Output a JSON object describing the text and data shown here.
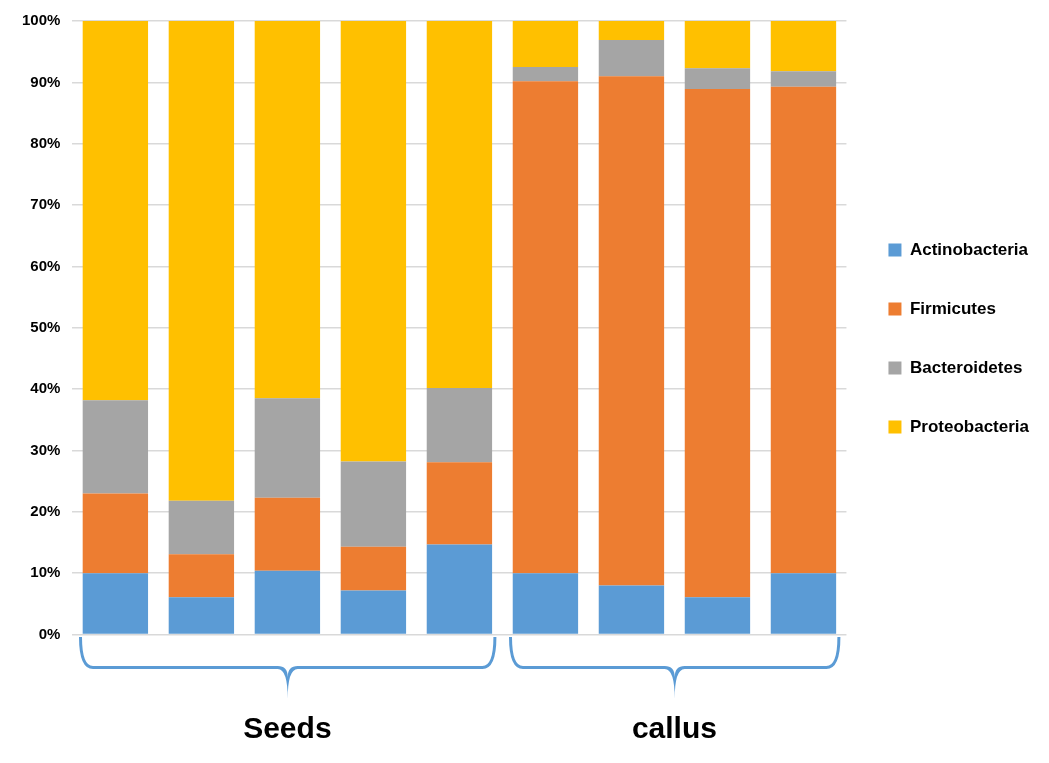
{
  "chart_data": {
    "type": "bar",
    "stacked": true,
    "categories": [
      null,
      null,
      null,
      null,
      null,
      null,
      null,
      null,
      null
    ],
    "series": [
      {
        "name": "Actinobacteria",
        "color": "#5b9bd5",
        "values": [
          10,
          6.1,
          10.4,
          7.2,
          14.7,
          10,
          8,
          6.1,
          10
        ]
      },
      {
        "name": "Firmicutes",
        "color": "#ed7d31",
        "values": [
          13,
          7,
          11.9,
          7.1,
          13.4,
          80.2,
          83,
          82.8,
          79.3
        ]
      },
      {
        "name": "Bacteroidetes",
        "color": "#a5a5a5",
        "values": [
          15.2,
          8.7,
          16.2,
          13.9,
          12.1,
          2.3,
          5.9,
          3.4,
          2.5
        ]
      },
      {
        "name": "Proteobacteria",
        "color": "#ffc000",
        "values": [
          61.8,
          78.2,
          61.5,
          71.8,
          59.8,
          7.5,
          3.1,
          7.7,
          8.2
        ]
      }
    ],
    "ylim": [
      0,
      100
    ],
    "yticks": [
      {
        "value": 0,
        "label": "0%"
      },
      {
        "value": 10,
        "label": "10%"
      },
      {
        "value": 20,
        "label": "20%"
      },
      {
        "value": 30,
        "label": "30%"
      },
      {
        "value": 40,
        "label": "40%"
      },
      {
        "value": 50,
        "label": "50%"
      },
      {
        "value": 60,
        "label": "60%"
      },
      {
        "value": 70,
        "label": "70%"
      },
      {
        "value": 80,
        "label": "80%"
      },
      {
        "value": 90,
        "label": "90%"
      },
      {
        "value": 100,
        "label": "100%"
      }
    ],
    "grid": "y",
    "legend": "right",
    "annotations": [
      "Seeds",
      "callus"
    ]
  }
}
